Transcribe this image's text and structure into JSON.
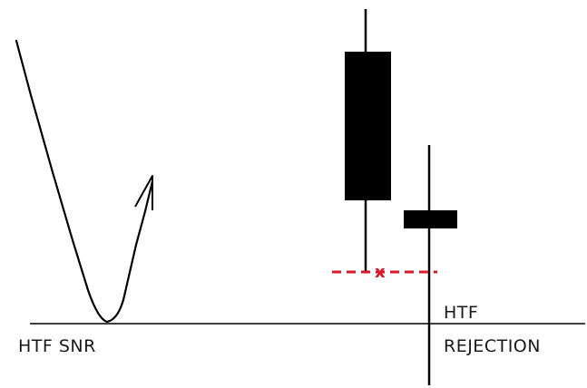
{
  "labels": {
    "htf_snr": "HTF SNR",
    "htf": "HTF",
    "rejection": "REJECTION",
    "cross": "x"
  },
  "colors": {
    "ink": "#000000",
    "level_dash": "#d81b2a"
  }
}
